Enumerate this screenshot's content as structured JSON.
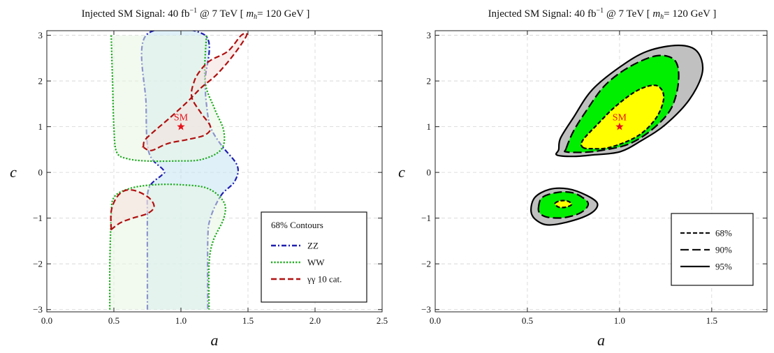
{
  "chart_data": [
    {
      "type": "contour",
      "title": {
        "prefix": "Injected SM Signal:  40 fb",
        "exp": "−1",
        "mid": " @ 7 TeV [ ",
        "mvar": "m",
        "msub": "h",
        "suffix": "= 120 GeV ]"
      },
      "xlabel": "a",
      "ylabel": "c",
      "xlim": [
        0,
        2.5
      ],
      "ylim": [
        -3.05,
        3.1
      ],
      "xticks": [
        0,
        0.5,
        1,
        1.5,
        2,
        2.5
      ],
      "xtick_labels": [
        "0.0",
        "0.5",
        "1.0",
        "1.5",
        "2.0",
        "2.5"
      ],
      "yticks": [
        -3,
        -2,
        -1,
        0,
        1,
        2,
        3
      ],
      "ytick_labels": [
        "−3",
        "−2",
        "−1",
        "0",
        "1",
        "2",
        "3"
      ],
      "grid": true,
      "legend_placement": "bottom-right",
      "legend": {
        "title": "68% Contours",
        "items": [
          {
            "label": "ZZ",
            "color": "#1f1fb0",
            "dash": "dash-dot"
          },
          {
            "label": "WW",
            "color": "#1faa1f",
            "dash": "dotted"
          },
          {
            "label": "γγ 10 cat.",
            "color": "#b01010",
            "dash": "dashed"
          }
        ]
      },
      "sm_point": {
        "label": "SM",
        "a": 1.0,
        "c": 1.0,
        "color": "#e8101a"
      },
      "series": [
        {
          "name": "ZZ",
          "color": "#1f1fb0",
          "fill": "#c4e4f4",
          "dash": "dash-dot",
          "contours": [
            [
              [
                0.75,
                -3.0
              ],
              [
                0.75,
                -2.0
              ],
              [
                0.75,
                -1.0
              ],
              [
                0.76,
                -0.35
              ],
              [
                0.86,
                -0.05
              ],
              [
                0.87,
                0.05
              ],
              [
                0.76,
                0.45
              ],
              [
                0.74,
                1.5
              ],
              [
                0.74,
                3.0
              ],
              [
                1.18,
                3.0
              ],
              [
                1.18,
                2.0
              ],
              [
                1.19,
                1.5
              ],
              [
                1.22,
                1.0
              ],
              [
                1.3,
                0.6
              ],
              [
                1.42,
                0.15
              ],
              [
                1.4,
                -0.2
              ],
              [
                1.3,
                -0.5
              ],
              [
                1.22,
                -1.0
              ],
              [
                1.2,
                -1.5
              ],
              [
                1.2,
                -3.0
              ]
            ]
          ]
        },
        {
          "name": "WW",
          "color": "#1faa1f",
          "fill": "#e8f6e4",
          "dash": "dotted",
          "contours": [
            [
              [
                0.48,
                3.0
              ],
              [
                0.49,
                2.0
              ],
              [
                0.5,
                1.0
              ],
              [
                0.52,
                0.45
              ],
              [
                0.6,
                0.3
              ],
              [
                0.75,
                0.25
              ],
              [
                0.95,
                0.25
              ],
              [
                1.15,
                0.28
              ],
              [
                1.3,
                0.5
              ],
              [
                1.32,
                0.9
              ],
              [
                1.25,
                1.4
              ],
              [
                1.18,
                2.0
              ],
              [
                1.19,
                3.0
              ]
            ],
            [
              [
                0.47,
                -3.0
              ],
              [
                0.47,
                -2.0
              ],
              [
                0.48,
                -1.0
              ],
              [
                0.5,
                -0.55
              ],
              [
                0.62,
                -0.35
              ],
              [
                0.8,
                -0.27
              ],
              [
                1.0,
                -0.27
              ],
              [
                1.2,
                -0.35
              ],
              [
                1.32,
                -0.65
              ],
              [
                1.32,
                -1.0
              ],
              [
                1.24,
                -1.5
              ],
              [
                1.21,
                -2.0
              ],
              [
                1.21,
                -3.0
              ]
            ]
          ]
        },
        {
          "name": "γγ 10 cat.",
          "color": "#b01010",
          "fill": "#f6e0dc",
          "dash": "dashed",
          "closed": true,
          "contours": [
            [
              [
                0.72,
                0.55
              ],
              [
                0.73,
                0.7
              ],
              [
                0.8,
                0.9
              ],
              [
                0.92,
                1.2
              ],
              [
                1.05,
                1.55
              ],
              [
                1.15,
                1.85
              ],
              [
                1.27,
                2.15
              ],
              [
                1.4,
                2.6
              ],
              [
                1.49,
                3.0
              ],
              [
                1.45,
                3.0
              ],
              [
                1.35,
                2.65
              ],
              [
                1.22,
                2.45
              ],
              [
                1.15,
                2.25
              ],
              [
                1.1,
                2.0
              ],
              [
                1.08,
                1.65
              ],
              [
                1.15,
                1.3
              ],
              [
                1.22,
                1.0
              ],
              [
                1.18,
                0.82
              ],
              [
                1.05,
                0.72
              ],
              [
                0.9,
                0.63
              ],
              [
                0.78,
                0.48
              ],
              [
                0.72,
                0.55
              ]
            ],
            [
              [
                0.48,
                -1.25
              ],
              [
                0.48,
                -0.85
              ],
              [
                0.52,
                -0.55
              ],
              [
                0.58,
                -0.4
              ],
              [
                0.66,
                -0.4
              ],
              [
                0.76,
                -0.55
              ],
              [
                0.8,
                -0.75
              ],
              [
                0.75,
                -0.9
              ],
              [
                0.64,
                -1.0
              ],
              [
                0.55,
                -1.1
              ],
              [
                0.48,
                -1.25
              ]
            ]
          ]
        }
      ]
    },
    {
      "type": "contour",
      "title": {
        "prefix": "Injected SM Signal:  40 fb",
        "exp": "−1",
        "mid": " @ 7 TeV [ ",
        "mvar": "m",
        "msub": "h",
        "suffix": "= 120 GeV ]"
      },
      "xlabel": "a",
      "ylabel": "c",
      "xlim": [
        0,
        1.8
      ],
      "ylim": [
        -3.05,
        3.1
      ],
      "xticks": [
        0,
        0.5,
        1,
        1.5
      ],
      "xtick_labels": [
        "0.0",
        "0.5",
        "1.0",
        "1.5"
      ],
      "yticks": [
        -3,
        -2,
        -1,
        0,
        1,
        2,
        3
      ],
      "ytick_labels": [
        "−3",
        "−2",
        "−1",
        "0",
        "1",
        "2",
        "3"
      ],
      "grid": true,
      "legend_placement": "bottom-right",
      "legend": {
        "items": [
          {
            "label": "68%",
            "dash": "short-dashed"
          },
          {
            "label": "90%",
            "dash": "long-dashed"
          },
          {
            "label": "95%",
            "dash": "solid"
          }
        ]
      },
      "sm_point": {
        "label": "SM",
        "a": 1.0,
        "c": 1.0,
        "color": "#e8101a"
      },
      "series": [
        {
          "name": "95%",
          "fill": "#c0c0c0",
          "stroke": "solid",
          "contours": [
            [
              [
                0.67,
                0.5
              ],
              [
                0.66,
                0.38
              ],
              [
                0.75,
                0.35
              ],
              [
                0.85,
                0.38
              ],
              [
                1.0,
                0.45
              ],
              [
                1.12,
                0.7
              ],
              [
                1.25,
                1.05
              ],
              [
                1.38,
                1.6
              ],
              [
                1.45,
                2.2
              ],
              [
                1.42,
                2.65
              ],
              [
                1.32,
                2.78
              ],
              [
                1.15,
                2.65
              ],
              [
                1.0,
                2.3
              ],
              [
                0.85,
                1.8
              ],
              [
                0.75,
                1.2
              ],
              [
                0.68,
                0.75
              ]
            ],
            [
              [
                0.52,
                -0.85
              ],
              [
                0.54,
                -0.55
              ],
              [
                0.62,
                -0.37
              ],
              [
                0.72,
                -0.36
              ],
              [
                0.82,
                -0.5
              ],
              [
                0.88,
                -0.68
              ],
              [
                0.85,
                -0.88
              ],
              [
                0.75,
                -1.05
              ],
              [
                0.62,
                -1.15
              ],
              [
                0.55,
                -1.05
              ]
            ]
          ]
        },
        {
          "name": "90%",
          "fill": "#00ee00",
          "stroke": "long-dashed",
          "contours": [
            [
              [
                0.71,
                0.52
              ],
              [
                0.71,
                0.45
              ],
              [
                0.8,
                0.44
              ],
              [
                0.9,
                0.48
              ],
              [
                1.05,
                0.62
              ],
              [
                1.18,
                0.95
              ],
              [
                1.28,
                1.4
              ],
              [
                1.32,
                2.0
              ],
              [
                1.3,
                2.45
              ],
              [
                1.2,
                2.55
              ],
              [
                1.05,
                2.3
              ],
              [
                0.92,
                1.9
              ],
              [
                0.82,
                1.35
              ],
              [
                0.75,
                0.9
              ]
            ],
            [
              [
                0.56,
                -0.78
              ],
              [
                0.58,
                -0.55
              ],
              [
                0.66,
                -0.44
              ],
              [
                0.74,
                -0.44
              ],
              [
                0.8,
                -0.55
              ],
              [
                0.83,
                -0.7
              ],
              [
                0.79,
                -0.88
              ],
              [
                0.7,
                -0.99
              ],
              [
                0.61,
                -0.98
              ],
              [
                0.57,
                -0.9
              ]
            ]
          ]
        },
        {
          "name": "68%",
          "fill": "#ffff00",
          "stroke": "short-dashed",
          "contours": [
            [
              [
                0.8,
                0.55
              ],
              [
                0.85,
                0.52
              ],
              [
                0.95,
                0.55
              ],
              [
                1.1,
                0.8
              ],
              [
                1.2,
                1.2
              ],
              [
                1.24,
                1.65
              ],
              [
                1.2,
                1.9
              ],
              [
                1.1,
                1.8
              ],
              [
                0.98,
                1.45
              ],
              [
                0.88,
                1.05
              ],
              [
                0.8,
                0.7
              ]
            ],
            [
              [
                0.65,
                -0.68
              ],
              [
                0.68,
                -0.62
              ],
              [
                0.72,
                -0.63
              ],
              [
                0.74,
                -0.7
              ],
              [
                0.71,
                -0.76
              ],
              [
                0.67,
                -0.76
              ]
            ]
          ]
        }
      ]
    }
  ]
}
